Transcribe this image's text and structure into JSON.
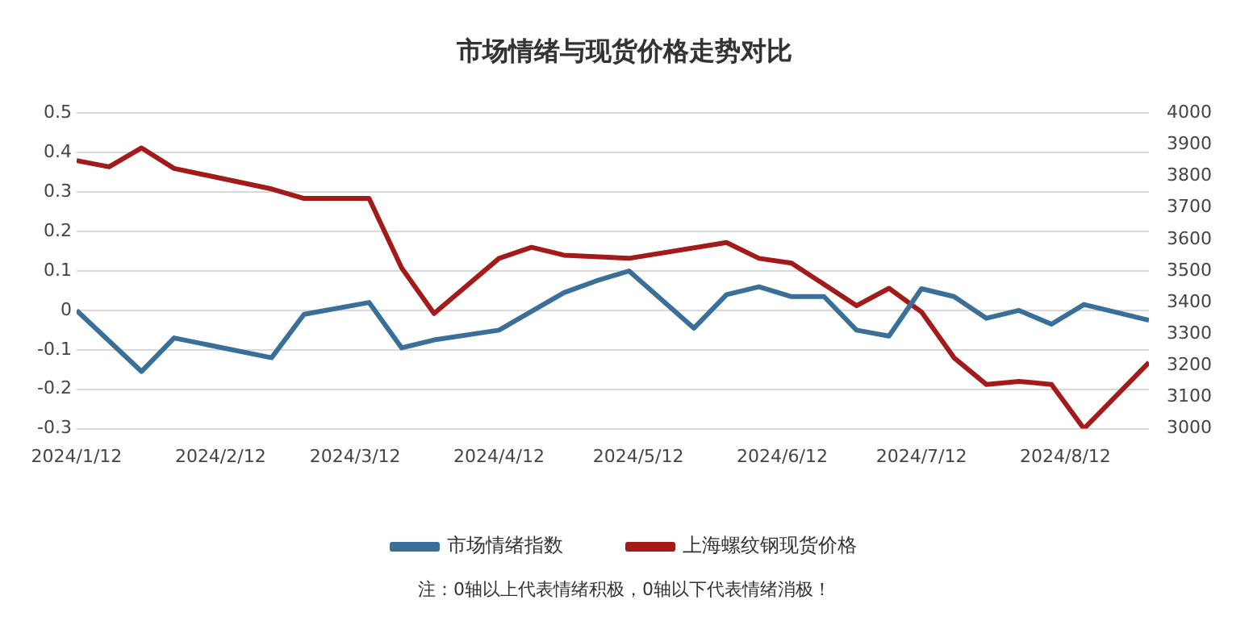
{
  "chart_data": {
    "type": "line",
    "title": "市场情绪与现货价格走势对比",
    "annotations": [
      "注：0轴以上代表情绪积极，0轴以下代表情绪消极！"
    ],
    "xlim": [
      "2024-01-12",
      "2024-08-30"
    ],
    "xticks": [
      {
        "value": "2024-01-12",
        "label": "2024/1/12"
      },
      {
        "value": "2024-02-12",
        "label": "2024/2/12"
      },
      {
        "value": "2024-03-12",
        "label": "2024/3/12"
      },
      {
        "value": "2024-04-12",
        "label": "2024/4/12"
      },
      {
        "value": "2024-05-12",
        "label": "2024/5/12"
      },
      {
        "value": "2024-06-12",
        "label": "2024/6/12"
      },
      {
        "value": "2024-07-12",
        "label": "2024/7/12"
      },
      {
        "value": "2024-08-12",
        "label": "2024/8/12"
      }
    ],
    "ylim": [
      -0.3,
      0.5
    ],
    "yticks": [
      -0.3,
      -0.2,
      -0.1,
      0,
      0.1,
      0.2,
      0.3,
      0.4,
      0.5
    ],
    "y2lim": [
      3000,
      4000
    ],
    "y2ticks": [
      3000,
      3100,
      3200,
      3300,
      3400,
      3500,
      3600,
      3700,
      3800,
      3900,
      4000
    ],
    "grid": "y",
    "legend": "bottom",
    "marker": "none",
    "line_style": "solid",
    "series": [
      {
        "name": "市场情绪指数",
        "color": "#3a6f9a",
        "x": [
          "2024-01-12",
          "2024-01-26",
          "2024-02-02",
          "2024-02-23",
          "2024-03-01",
          "2024-03-15",
          "2024-03-22",
          "2024-03-29",
          "2024-04-12",
          "2024-04-26",
          "2024-05-03",
          "2024-05-10",
          "2024-05-24",
          "2024-05-31",
          "2024-06-07",
          "2024-06-14",
          "2024-06-21",
          "2024-06-28",
          "2024-07-05",
          "2024-07-12",
          "2024-07-19",
          "2024-07-26",
          "2024-08-02",
          "2024-08-09",
          "2024-08-16",
          "2024-08-30"
        ],
        "values": [
          0,
          -0.155,
          -0.07,
          -0.12,
          -0.01,
          0.02,
          -0.095,
          -0.075,
          -0.05,
          0.045,
          0.075,
          0.1,
          -0.045,
          0.04,
          0.06,
          0.035,
          0.035,
          -0.05,
          -0.065,
          0.055,
          0.035,
          -0.02,
          0,
          -0.035,
          0.015,
          -0.025
        ]
      },
      {
        "name": "上海螺纹钢现货价格",
        "color": "#a31a1a",
        "axis": "y2",
        "x": [
          "2024-01-12",
          "2024-01-19",
          "2024-01-26",
          "2024-02-02",
          "2024-02-23",
          "2024-03-01",
          "2024-03-15",
          "2024-03-22",
          "2024-03-29",
          "2024-04-12",
          "2024-04-19",
          "2024-04-26",
          "2024-05-10",
          "2024-05-31",
          "2024-06-07",
          "2024-06-14",
          "2024-06-28",
          "2024-07-05",
          "2024-07-12",
          "2024-07-19",
          "2024-07-26",
          "2024-08-02",
          "2024-08-09",
          "2024-08-16",
          "2024-08-30"
        ],
        "values": [
          3850,
          3830,
          3890,
          3825,
          3760,
          3730,
          3730,
          3510,
          3365,
          3540,
          3575,
          3550,
          3540,
          3590,
          3540,
          3525,
          3390,
          3445,
          3370,
          3225,
          3140,
          3150,
          3140,
          3000,
          3210
        ]
      }
    ]
  }
}
